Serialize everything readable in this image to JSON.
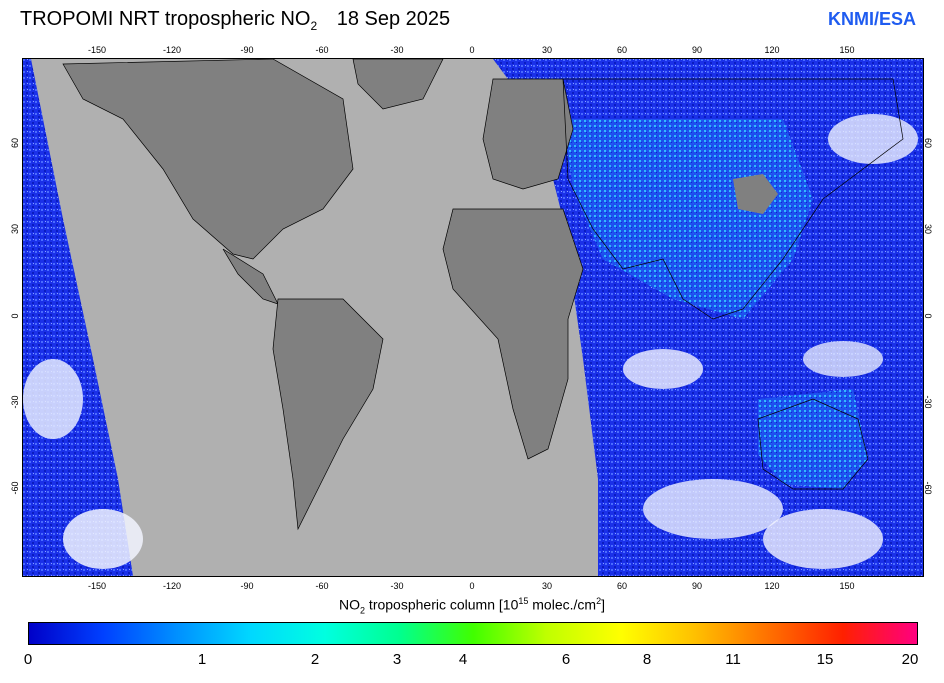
{
  "header": {
    "title_main": "TROPOMI NRT tropospheric NO",
    "title_sub": "2",
    "date": "18 Sep 2025",
    "brand": "KNMI/ESA",
    "brand_color": "#1f5cf0"
  },
  "map": {
    "x_ticks": [
      "-150",
      "-120",
      "-90",
      "-60",
      "-30",
      "0",
      "30",
      "60",
      "90",
      "120",
      "150"
    ],
    "y_ticks_left": [
      "60",
      "30",
      "0",
      "-30",
      "-60"
    ],
    "y_ticks_right": [
      "60",
      "30",
      "0",
      "-30",
      "-60"
    ],
    "colors": {
      "no_data": "#b0b0b0",
      "land": "#808080",
      "ocean_low": "#1428e0",
      "cloud": "#ffffff"
    }
  },
  "colorbar": {
    "label_prefix": "NO",
    "label_sub": "2",
    "label_middle": " tropospheric column [10",
    "label_sup": "15",
    "label_suffix": " molec./cm",
    "label_sup2": "2",
    "label_end": "]",
    "ticks": [
      "0",
      "1",
      "2",
      "3",
      "4",
      "6",
      "8",
      "11",
      "15",
      "20"
    ],
    "colors": [
      "#0000c8",
      "#0040ff",
      "#0090ff",
      "#00d8ff",
      "#00ffe0",
      "#00ff90",
      "#40ff00",
      "#c0ff00",
      "#ffff00",
      "#ffc000",
      "#ff7000",
      "#ff2000",
      "#ff0080"
    ]
  }
}
